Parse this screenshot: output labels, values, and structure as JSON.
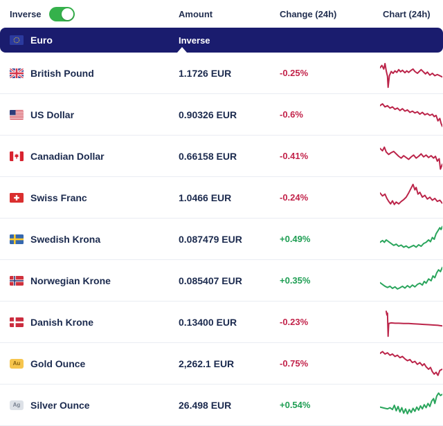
{
  "header": {
    "inverse_toggle_label": "Inverse",
    "toggle_state": "on",
    "columns": {
      "amount": "Amount",
      "change": "Change (24h)",
      "chart": "Chart (24h)"
    }
  },
  "base_currency": {
    "name": "Euro",
    "column_label": "Inverse",
    "flag": "eu",
    "icon_name": "eu-flag-icon"
  },
  "colors": {
    "navy_bar": "#1a1c6e",
    "toggle_green": "#35b14b",
    "negative_text": "#c2234a",
    "positive_text": "#1e9e53",
    "spark_negative": "#bb2449",
    "spark_positive": "#2aa55c"
  },
  "rows": [
    {
      "name": "British Pound",
      "flag": "gb",
      "icon_name": "uk-flag-icon",
      "amount": "1.1726 EUR",
      "change": "-0.25%",
      "direction": "down",
      "spark": [
        [
          0,
          32
        ],
        [
          3,
          24
        ],
        [
          6,
          36
        ],
        [
          8,
          18
        ],
        [
          10,
          42
        ],
        [
          12,
          60
        ],
        [
          13,
          96
        ],
        [
          15,
          58
        ],
        [
          18,
          44
        ],
        [
          21,
          50
        ],
        [
          24,
          42
        ],
        [
          27,
          47
        ],
        [
          30,
          38
        ],
        [
          33,
          45
        ],
        [
          36,
          40
        ],
        [
          40,
          48
        ],
        [
          43,
          42
        ],
        [
          46,
          47
        ],
        [
          50,
          40
        ],
        [
          53,
          36
        ],
        [
          56,
          44
        ],
        [
          60,
          50
        ],
        [
          63,
          44
        ],
        [
          66,
          38
        ],
        [
          70,
          46
        ],
        [
          73,
          52
        ],
        [
          76,
          46
        ],
        [
          80,
          56
        ],
        [
          84,
          50
        ],
        [
          88,
          58
        ],
        [
          92,
          54
        ],
        [
          96,
          58
        ],
        [
          100,
          62
        ]
      ]
    },
    {
      "name": "US Dollar",
      "flag": "us",
      "icon_name": "us-flag-icon",
      "amount": "0.90326 EUR",
      "change": "-0.6%",
      "direction": "down",
      "spark": [
        [
          0,
          20
        ],
        [
          4,
          14
        ],
        [
          8,
          24
        ],
        [
          12,
          20
        ],
        [
          16,
          28
        ],
        [
          20,
          24
        ],
        [
          24,
          32
        ],
        [
          28,
          28
        ],
        [
          32,
          36
        ],
        [
          36,
          30
        ],
        [
          40,
          38
        ],
        [
          44,
          34
        ],
        [
          48,
          42
        ],
        [
          52,
          38
        ],
        [
          56,
          44
        ],
        [
          60,
          40
        ],
        [
          64,
          48
        ],
        [
          68,
          42
        ],
        [
          72,
          50
        ],
        [
          76,
          46
        ],
        [
          80,
          52
        ],
        [
          84,
          48
        ],
        [
          87,
          56
        ],
        [
          90,
          52
        ],
        [
          93,
          70
        ],
        [
          96,
          62
        ],
        [
          98,
          78
        ],
        [
          100,
          88
        ]
      ]
    },
    {
      "name": "Canadian Dollar",
      "flag": "ca",
      "icon_name": "canada-flag-icon",
      "amount": "0.66158 EUR",
      "change": "-0.41%",
      "direction": "down",
      "spark": [
        [
          0,
          24
        ],
        [
          4,
          32
        ],
        [
          7,
          20
        ],
        [
          10,
          36
        ],
        [
          14,
          44
        ],
        [
          18,
          38
        ],
        [
          22,
          34
        ],
        [
          26,
          42
        ],
        [
          30,
          50
        ],
        [
          34,
          56
        ],
        [
          38,
          48
        ],
        [
          42,
          54
        ],
        [
          46,
          60
        ],
        [
          50,
          52
        ],
        [
          54,
          46
        ],
        [
          58,
          56
        ],
        [
          62,
          50
        ],
        [
          66,
          42
        ],
        [
          70,
          52
        ],
        [
          74,
          46
        ],
        [
          78,
          54
        ],
        [
          82,
          48
        ],
        [
          86,
          56
        ],
        [
          89,
          50
        ],
        [
          92,
          66
        ],
        [
          95,
          58
        ],
        [
          97,
          92
        ],
        [
          100,
          76
        ]
      ]
    },
    {
      "name": "Swiss Franc",
      "flag": "ch",
      "icon_name": "switzerland-flag-icon",
      "amount": "1.0466 EUR",
      "change": "-0.24%",
      "direction": "down",
      "spark": [
        [
          0,
          34
        ],
        [
          4,
          44
        ],
        [
          8,
          38
        ],
        [
          11,
          52
        ],
        [
          14,
          62
        ],
        [
          17,
          70
        ],
        [
          20,
          60
        ],
        [
          23,
          72
        ],
        [
          26,
          64
        ],
        [
          30,
          70
        ],
        [
          34,
          62
        ],
        [
          38,
          56
        ],
        [
          42,
          48
        ],
        [
          46,
          34
        ],
        [
          50,
          18
        ],
        [
          53,
          6
        ],
        [
          56,
          24
        ],
        [
          58,
          16
        ],
        [
          61,
          38
        ],
        [
          64,
          32
        ],
        [
          68,
          48
        ],
        [
          72,
          42
        ],
        [
          76,
          54
        ],
        [
          80,
          48
        ],
        [
          84,
          58
        ],
        [
          88,
          52
        ],
        [
          92,
          62
        ],
        [
          96,
          58
        ],
        [
          100,
          68
        ]
      ]
    },
    {
      "name": "Swedish Krona",
      "flag": "se",
      "icon_name": "sweden-flag-icon",
      "amount": "0.087479 EUR",
      "change": "+0.49%",
      "direction": "up",
      "spark": [
        [
          0,
          60
        ],
        [
          4,
          54
        ],
        [
          7,
          60
        ],
        [
          10,
          52
        ],
        [
          14,
          58
        ],
        [
          18,
          64
        ],
        [
          22,
          70
        ],
        [
          26,
          66
        ],
        [
          30,
          73
        ],
        [
          34,
          69
        ],
        [
          38,
          76
        ],
        [
          42,
          72
        ],
        [
          46,
          78
        ],
        [
          50,
          74
        ],
        [
          54,
          70
        ],
        [
          58,
          76
        ],
        [
          62,
          68
        ],
        [
          66,
          73
        ],
        [
          70,
          64
        ],
        [
          74,
          60
        ],
        [
          78,
          52
        ],
        [
          81,
          58
        ],
        [
          84,
          44
        ],
        [
          87,
          50
        ],
        [
          90,
          32
        ],
        [
          93,
          22
        ],
        [
          96,
          12
        ],
        [
          98,
          18
        ],
        [
          100,
          8
        ]
      ]
    },
    {
      "name": "Norwegian Krone",
      "flag": "no",
      "icon_name": "norway-flag-icon",
      "amount": "0.085407 EUR",
      "change": "+0.35%",
      "direction": "up",
      "spark": [
        [
          0,
          56
        ],
        [
          4,
          62
        ],
        [
          8,
          68
        ],
        [
          12,
          72
        ],
        [
          16,
          68
        ],
        [
          20,
          75
        ],
        [
          24,
          70
        ],
        [
          28,
          77
        ],
        [
          32,
          73
        ],
        [
          36,
          68
        ],
        [
          40,
          74
        ],
        [
          44,
          66
        ],
        [
          48,
          72
        ],
        [
          52,
          64
        ],
        [
          56,
          70
        ],
        [
          60,
          62
        ],
        [
          64,
          58
        ],
        [
          68,
          64
        ],
        [
          71,
          52
        ],
        [
          74,
          58
        ],
        [
          78,
          44
        ],
        [
          82,
          50
        ],
        [
          85,
          34
        ],
        [
          88,
          40
        ],
        [
          91,
          24
        ],
        [
          94,
          14
        ],
        [
          97,
          20
        ],
        [
          100,
          6
        ]
      ]
    },
    {
      "name": "Danish Krone",
      "flag": "dk",
      "icon_name": "denmark-flag-icon",
      "amount": "0.13400 EUR",
      "change": "-0.23%",
      "direction": "down",
      "spark": [
        [
          10,
          14
        ],
        [
          11,
          26
        ],
        [
          12,
          20
        ],
        [
          13,
          96
        ],
        [
          14,
          54
        ],
        [
          18,
          52
        ],
        [
          24,
          53
        ],
        [
          30,
          53
        ],
        [
          38,
          54
        ],
        [
          46,
          54
        ],
        [
          54,
          55
        ],
        [
          62,
          56
        ],
        [
          70,
          57
        ],
        [
          78,
          58
        ],
        [
          86,
          59
        ],
        [
          93,
          60
        ],
        [
          100,
          62
        ]
      ]
    },
    {
      "name": "Gold Ounce",
      "flag": "au",
      "icon_name": "gold-badge-icon",
      "symbol": "Au",
      "amount": "2,262.1 EUR",
      "change": "-0.75%",
      "direction": "down",
      "spark": [
        [
          0,
          16
        ],
        [
          4,
          10
        ],
        [
          8,
          18
        ],
        [
          12,
          14
        ],
        [
          16,
          22
        ],
        [
          20,
          18
        ],
        [
          24,
          26
        ],
        [
          28,
          22
        ],
        [
          32,
          30
        ],
        [
          36,
          26
        ],
        [
          40,
          34
        ],
        [
          44,
          40
        ],
        [
          48,
          36
        ],
        [
          52,
          46
        ],
        [
          56,
          42
        ],
        [
          60,
          52
        ],
        [
          64,
          46
        ],
        [
          68,
          56
        ],
        [
          71,
          50
        ],
        [
          74,
          60
        ],
        [
          78,
          68
        ],
        [
          81,
          62
        ],
        [
          84,
          76
        ],
        [
          87,
          84
        ],
        [
          90,
          78
        ],
        [
          93,
          88
        ],
        [
          96,
          72
        ],
        [
          100,
          68
        ]
      ]
    },
    {
      "name": "Silver Ounce",
      "flag": "ag",
      "icon_name": "silver-badge-icon",
      "symbol": "Ag",
      "amount": "26.498 EUR",
      "change": "+0.54%",
      "direction": "up",
      "spark": [
        [
          0,
          56
        ],
        [
          4,
          58
        ],
        [
          8,
          60
        ],
        [
          12,
          62
        ],
        [
          16,
          58
        ],
        [
          20,
          64
        ],
        [
          23,
          50
        ],
        [
          26,
          68
        ],
        [
          29,
          54
        ],
        [
          32,
          72
        ],
        [
          35,
          58
        ],
        [
          38,
          76
        ],
        [
          41,
          62
        ],
        [
          44,
          78
        ],
        [
          47,
          64
        ],
        [
          50,
          74
        ],
        [
          53,
          60
        ],
        [
          56,
          70
        ],
        [
          59,
          56
        ],
        [
          62,
          66
        ],
        [
          65,
          52
        ],
        [
          68,
          62
        ],
        [
          71,
          48
        ],
        [
          74,
          58
        ],
        [
          77,
          44
        ],
        [
          80,
          54
        ],
        [
          83,
          36
        ],
        [
          86,
          28
        ],
        [
          88,
          44
        ],
        [
          91,
          20
        ],
        [
          94,
          10
        ],
        [
          97,
          18
        ],
        [
          100,
          14
        ]
      ]
    }
  ]
}
